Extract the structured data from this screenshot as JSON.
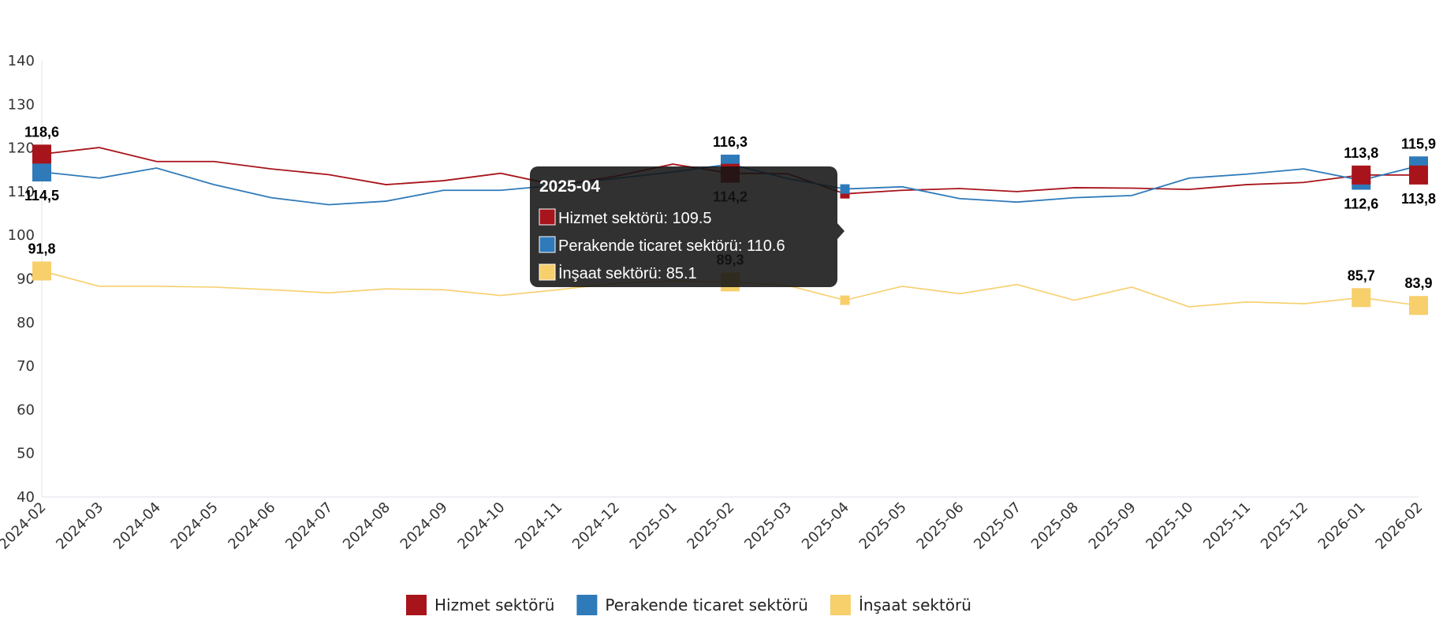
{
  "chart_data": {
    "type": "line",
    "title": "",
    "xlabel": "",
    "ylabel": "",
    "ylim": [
      40,
      140
    ],
    "yticks": [
      40,
      50,
      60,
      70,
      80,
      90,
      100,
      110,
      120,
      130,
      140
    ],
    "grid": false,
    "legend_position": "bottom",
    "categories": [
      "2024-02",
      "2024-03",
      "2024-04",
      "2024-05",
      "2024-06",
      "2024-07",
      "2024-08",
      "2024-09",
      "2024-10",
      "2024-11",
      "2024-12",
      "2025-01",
      "2025-02",
      "2025-03",
      "2025-04",
      "2025-05",
      "2025-06",
      "2025-07",
      "2025-08",
      "2025-09",
      "2025-10",
      "2025-11",
      "2025-12",
      "2026-01",
      "2026-02"
    ],
    "series": [
      {
        "name": "Hizmet sektörü",
        "color": "#a8141b",
        "values": [
          118.6,
          120.1,
          116.9,
          116.9,
          115.2,
          113.9,
          111.6,
          112.5,
          114.2,
          111.4,
          113.5,
          116.3,
          114.2,
          114.1,
          109.5,
          110.3,
          110.7,
          110.0,
          110.9,
          110.8,
          110.5,
          111.6,
          112.1,
          113.8,
          113.8
        ]
      },
      {
        "name": "Perakende ticaret sektörü",
        "color": "#2f7ab9",
        "values": [
          114.5,
          113.1,
          115.4,
          111.6,
          108.6,
          107.0,
          107.8,
          110.3,
          110.3,
          111.5,
          113.0,
          114.5,
          116.3,
          113.0,
          110.6,
          111.1,
          108.4,
          107.6,
          108.6,
          109.1,
          113.1,
          114.0,
          115.2,
          112.6,
          115.9
        ]
      },
      {
        "name": "İnşaat sektörü",
        "color": "#f7cf6b",
        "values": [
          91.8,
          88.3,
          88.3,
          88.1,
          87.5,
          86.8,
          87.7,
          87.5,
          86.2,
          87.5,
          89.0,
          89.5,
          89.3,
          88.5,
          85.1,
          88.3,
          86.6,
          88.7,
          85.1,
          88.1,
          83.6,
          84.7,
          84.3,
          85.7,
          83.9
        ]
      }
    ],
    "data_labels": [
      {
        "series": 0,
        "index": 0,
        "text": "118,6",
        "pos": "above"
      },
      {
        "series": 1,
        "index": 0,
        "text": "114,5",
        "pos": "below"
      },
      {
        "series": 2,
        "index": 0,
        "text": "91,8",
        "pos": "above"
      },
      {
        "series": 1,
        "index": 12,
        "text": "116,3",
        "pos": "above"
      },
      {
        "series": 0,
        "index": 12,
        "text": "114,2",
        "pos": "below"
      },
      {
        "series": 2,
        "index": 12,
        "text": "89,3",
        "pos": "above"
      },
      {
        "series": 0,
        "index": 23,
        "text": "113,8",
        "pos": "above"
      },
      {
        "series": 1,
        "index": 23,
        "text": "112,6",
        "pos": "below"
      },
      {
        "series": 2,
        "index": 23,
        "text": "85,7",
        "pos": "above"
      },
      {
        "series": 1,
        "index": 24,
        "text": "115,9",
        "pos": "above"
      },
      {
        "series": 0,
        "index": 24,
        "text": "113,8",
        "pos": "below"
      },
      {
        "series": 2,
        "index": 24,
        "text": "83,9",
        "pos": "above"
      }
    ],
    "tooltip": {
      "index": 14,
      "title": "2025-04",
      "rows": [
        "Hizmet sektörü: 109.5",
        "Perakende ticaret sektörü: 110.6",
        "İnşaat sektörü: 85.1"
      ]
    }
  }
}
